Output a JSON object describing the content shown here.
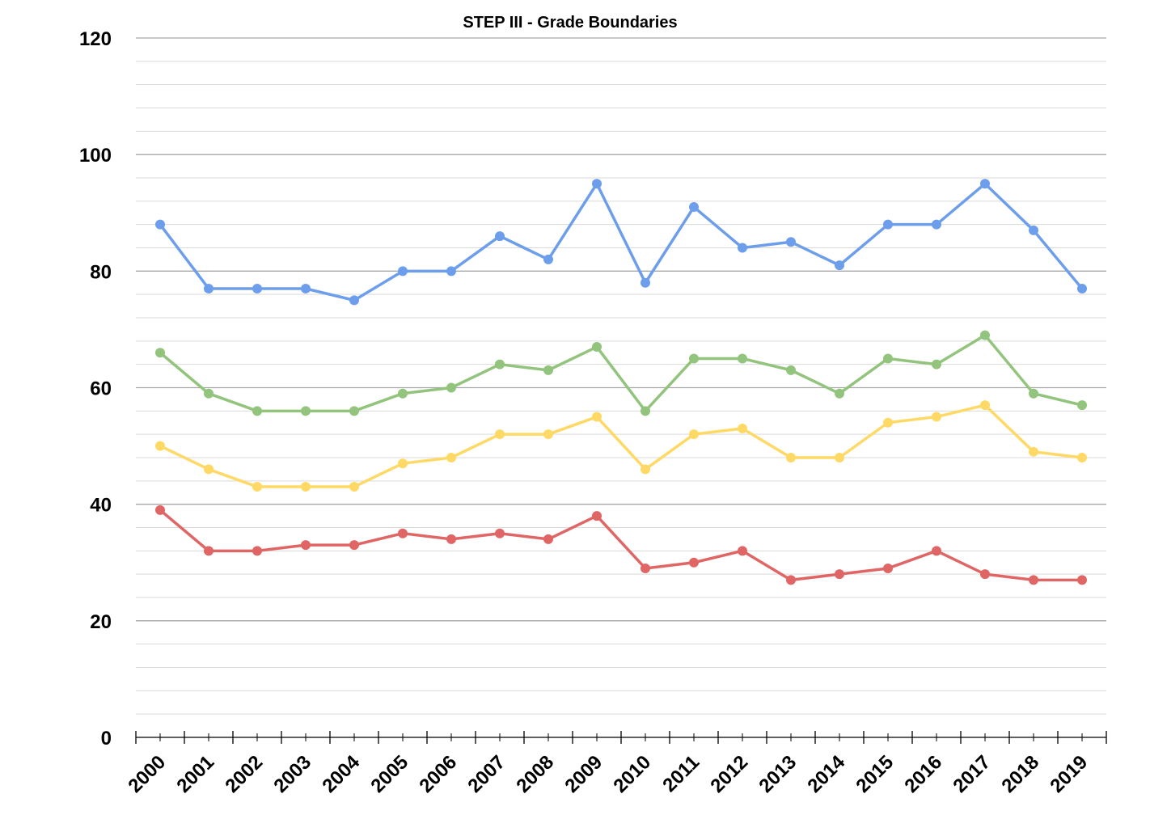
{
  "chart_data": {
    "type": "line",
    "title": "STEP III - Grade Boundaries",
    "xlabel": "",
    "ylabel": "",
    "ylim": [
      0,
      120
    ],
    "y_major_ticks": [
      "0",
      "20",
      "40",
      "60",
      "80",
      "100",
      "120"
    ],
    "y_minor_step": 4,
    "grid": true,
    "legend": "none",
    "x": [
      "2000",
      "2001",
      "2002",
      "2003",
      "2004",
      "2005",
      "2006",
      "2007",
      "2008",
      "2009",
      "2010",
      "2011",
      "2012",
      "2013",
      "2014",
      "2015",
      "2016",
      "2017",
      "2018",
      "2019"
    ],
    "series": [
      {
        "color": "#6D9EEB",
        "values": [
          88,
          77,
          77,
          77,
          75,
          80,
          80,
          86,
          82,
          95,
          78,
          91,
          84,
          85,
          81,
          88,
          88,
          95,
          87,
          77
        ]
      },
      {
        "color": "#93C47D",
        "values": [
          66,
          59,
          56,
          56,
          56,
          59,
          60,
          64,
          63,
          67,
          56,
          65,
          65,
          63,
          59,
          65,
          64,
          69,
          59,
          57
        ]
      },
      {
        "color": "#FFD966",
        "values": [
          50,
          46,
          43,
          43,
          43,
          47,
          48,
          52,
          52,
          55,
          46,
          52,
          53,
          48,
          48,
          54,
          55,
          57,
          49,
          48
        ]
      },
      {
        "color": "#E06666",
        "values": [
          39,
          32,
          32,
          33,
          33,
          35,
          34,
          35,
          34,
          38,
          29,
          30,
          32,
          27,
          28,
          29,
          32,
          28,
          27,
          27
        ]
      }
    ]
  }
}
